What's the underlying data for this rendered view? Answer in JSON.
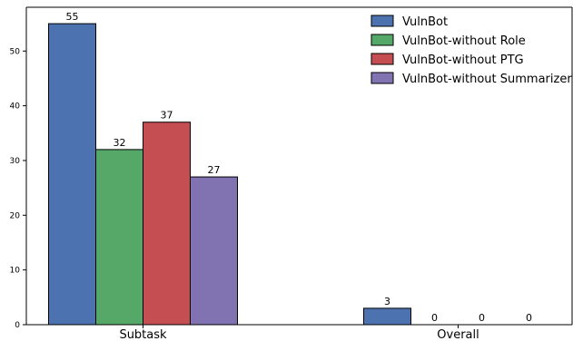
{
  "chart_data": {
    "type": "bar",
    "title": "",
    "xlabel": "",
    "ylabel": "",
    "categories": [
      "Subtask",
      "Overall"
    ],
    "ylim": [
      0,
      58
    ],
    "yticks": [
      0,
      10,
      20,
      30,
      40,
      50
    ],
    "grid": false,
    "legend_position": "top-right",
    "series": [
      {
        "name": "VulnBot",
        "color": "#4c72b0",
        "values": [
          55,
          3
        ]
      },
      {
        "name": "VulnBot-without Role",
        "color": "#55a868",
        "values": [
          32,
          0
        ]
      },
      {
        "name": "VulnBot-without PTG",
        "color": "#c44e52",
        "values": [
          37,
          0
        ]
      },
      {
        "name": "VulnBot-without Summarizer",
        "color": "#8172b2",
        "values": [
          27,
          0
        ]
      }
    ]
  }
}
